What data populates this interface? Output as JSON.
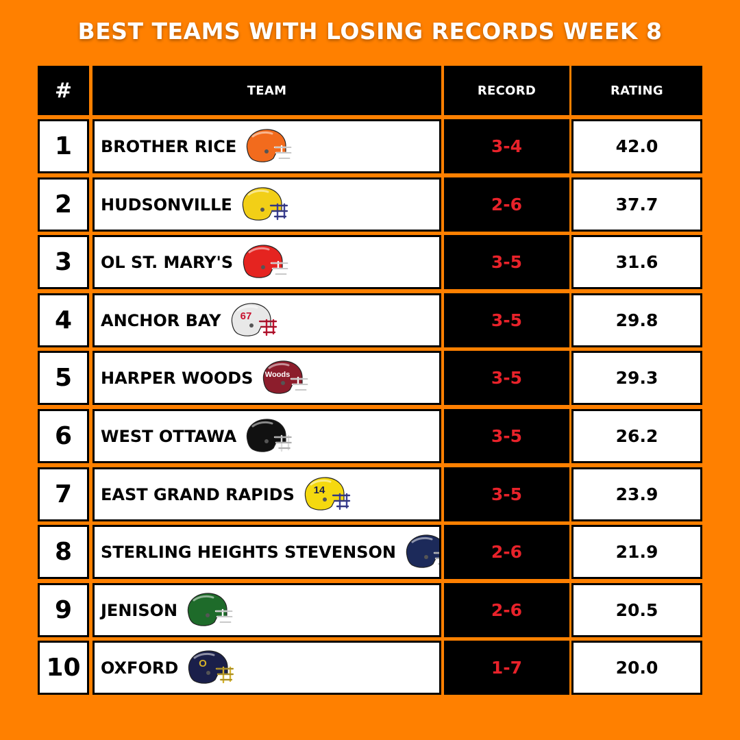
{
  "title": "BEST TEAMS WITH LOSING RECORDS WEEK 8",
  "headers": {
    "rank": "#",
    "team": "TEAM",
    "record": "RECORD",
    "rating": "RATING"
  },
  "colors": {
    "background": "#ff8000",
    "header_bg": "#000000",
    "record_text": "#e8222a"
  },
  "rows": [
    {
      "rank": "1",
      "team": "BROTHER RICE",
      "record": "3-4",
      "rating": "42.0",
      "helmet_icon": "brother-rice-helmet-icon",
      "helmet_color": "#f26b1d",
      "helmet_mark": "",
      "mask_color": "#ffffff"
    },
    {
      "rank": "2",
      "team": "HUDSONVILLE",
      "record": "2-6",
      "rating": "37.7",
      "helmet_icon": "hudsonville-helmet-icon",
      "helmet_color": "#f2cf17",
      "helmet_mark": "",
      "mask_color": "#3a3f9a"
    },
    {
      "rank": "3",
      "team": "OL ST. MARY'S",
      "record": "3-5",
      "rating": "31.6",
      "helmet_icon": "ol-st-marys-helmet-icon",
      "helmet_color": "#e52420",
      "helmet_mark": "",
      "mask_color": "#ffffff"
    },
    {
      "rank": "4",
      "team": "ANCHOR BAY",
      "record": "3-5",
      "rating": "29.8",
      "helmet_icon": "anchor-bay-helmet-icon",
      "helmet_color": "#e8e8e8",
      "helmet_mark": "67",
      "mask_color": "#c8102e"
    },
    {
      "rank": "5",
      "team": "HARPER WOODS",
      "record": "3-5",
      "rating": "29.3",
      "helmet_icon": "harper-woods-helmet-icon",
      "helmet_color": "#8c1d2c",
      "helmet_mark": "Woods",
      "mask_color": "#ffffff"
    },
    {
      "rank": "6",
      "team": "WEST OTTAWA",
      "record": "3-5",
      "rating": "26.2",
      "helmet_icon": "west-ottawa-helmet-icon",
      "helmet_color": "#111111",
      "helmet_mark": "",
      "mask_color": "#dddddd"
    },
    {
      "rank": "7",
      "team": "EAST GRAND RAPIDS",
      "record": "3-5",
      "rating": "23.9",
      "helmet_icon": "east-grand-rapids-helmet-icon",
      "helmet_color": "#f5d90f",
      "helmet_mark": "14",
      "mask_color": "#3a3f9a"
    },
    {
      "rank": "8",
      "team": "STERLING HEIGHTS STEVENSON",
      "record": "2-6",
      "rating": "21.9",
      "helmet_icon": "sterling-heights-stevenson-helmet-icon",
      "helmet_color": "#1c2a5a",
      "helmet_mark": "",
      "mask_color": "#dddddd"
    },
    {
      "rank": "9",
      "team": "JENISON",
      "record": "2-6",
      "rating": "20.5",
      "helmet_icon": "jenison-helmet-icon",
      "helmet_color": "#1e6b2a",
      "helmet_mark": "",
      "mask_color": "#ffffff"
    },
    {
      "rank": "10",
      "team": "OXFORD",
      "record": "1-7",
      "rating": "20.0",
      "helmet_icon": "oxford-helmet-icon",
      "helmet_color": "#1a1f4a",
      "helmet_mark": "O",
      "mask_color": "#d4b12a"
    }
  ]
}
